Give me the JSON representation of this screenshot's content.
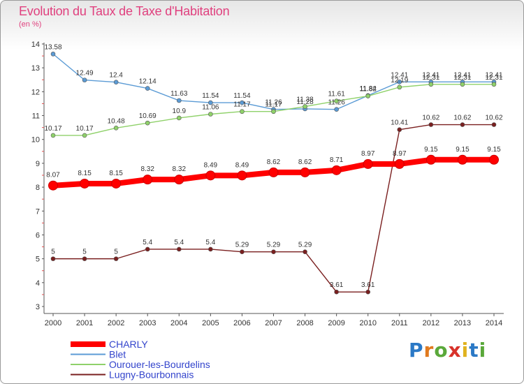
{
  "title": "Evolution du Taux de Taxe d'Habitation",
  "subtitle": "(en %)",
  "logo_text": "Proxiti",
  "chart_data": {
    "type": "line",
    "x": [
      2000,
      2001,
      2002,
      2003,
      2004,
      2005,
      2006,
      2007,
      2008,
      2009,
      2010,
      2011,
      2012,
      2013,
      2014
    ],
    "ylim": [
      3,
      14
    ],
    "yticks": [
      3,
      4,
      5,
      6,
      7,
      8,
      9,
      10,
      11,
      12,
      13,
      14
    ],
    "grid": false,
    "legend_position": "bottom-left",
    "series": [
      {
        "name": "CHARLY",
        "color": "#ff0000",
        "emphasis": true,
        "values": [
          8.07,
          8.15,
          8.15,
          8.32,
          8.32,
          8.49,
          8.49,
          8.62,
          8.62,
          8.71,
          8.97,
          8.97,
          9.15,
          9.15,
          9.15
        ]
      },
      {
        "name": "Blet",
        "color": "#5b9bd5",
        "values": [
          13.58,
          12.49,
          12.4,
          12.14,
          11.63,
          11.54,
          11.54,
          11.26,
          11.28,
          11.26,
          11.84,
          12.41,
          12.41,
          12.41,
          12.41
        ]
      },
      {
        "name": "Ourouer-les-Bourdelins",
        "color": "#8fd16a",
        "values": [
          10.17,
          10.17,
          10.48,
          10.69,
          10.9,
          11.06,
          11.17,
          11.17,
          11.38,
          11.61,
          11.82,
          12.19,
          12.31,
          12.31,
          12.31
        ]
      },
      {
        "name": "Lugny-Bourbonnais",
        "color": "#7a1f1f",
        "values": [
          5,
          5,
          5,
          5.4,
          5.4,
          5.4,
          5.29,
          5.29,
          5.29,
          3.61,
          3.61,
          10.41,
          10.62,
          10.62,
          10.62
        ]
      }
    ]
  }
}
